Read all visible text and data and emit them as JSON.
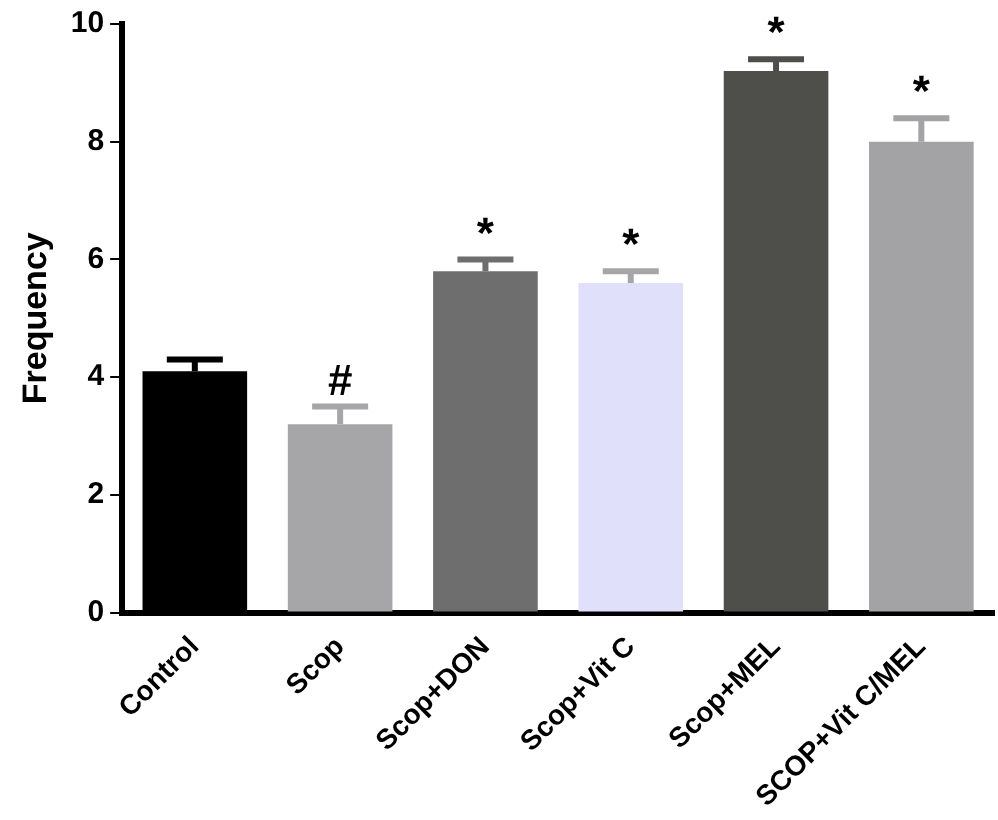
{
  "chart_data": {
    "type": "bar",
    "ylabel": "Frequency",
    "categories": [
      "Control",
      "Scop",
      "Scop+DON",
      "Scop+Vit C",
      "Scop+MEL",
      "SCOP+Vit C/MEL"
    ],
    "values": [
      4.1,
      3.2,
      5.8,
      5.6,
      9.2,
      8.0
    ],
    "errors": [
      0.2,
      0.3,
      0.2,
      0.2,
      0.2,
      0.4
    ],
    "colors": [
      "#000000",
      "#a6a6a8",
      "#6e6e6e",
      "#e0e0fa",
      "#4e4f4b",
      "#a3a3a6"
    ],
    "ylim": [
      0,
      10
    ],
    "yticks": [
      0,
      2,
      4,
      6,
      8,
      10
    ],
    "grid": false,
    "legend": false,
    "annotations": [
      {
        "text": "#",
        "x": "Scop",
        "y": 3.5
      },
      {
        "text": "*",
        "x": "Scop+DON",
        "y": 6.0
      },
      {
        "text": "*",
        "x": "Scop+Vit C",
        "y": 5.8
      },
      {
        "text": "*",
        "x": "Scop+MEL",
        "y": 9.4
      },
      {
        "text": "*",
        "x": "SCOP+Vit C/MEL",
        "y": 8.4
      }
    ]
  }
}
